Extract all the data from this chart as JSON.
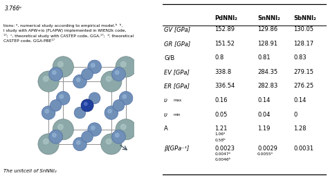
{
  "col_headers": [
    "",
    "PdNNI₂",
    "SnNNI₂",
    "SbNNI₂"
  ],
  "rows": [
    [
      "GV [GPa]",
      "152.89",
      "129.86",
      "130.05"
    ],
    [
      "GR [GPa]",
      "151.52",
      "128.91",
      "128.17"
    ],
    [
      "G/B",
      "0.8",
      "0.81",
      "0.83"
    ],
    [
      "EV [GPa]",
      "338.8",
      "284.35",
      "279.15"
    ],
    [
      "ER [GPa]",
      "336.54",
      "282.83",
      "276.25"
    ],
    [
      "v_max",
      "0.16",
      "0.14",
      "0.14"
    ],
    [
      "v_min",
      "0.05",
      "0.04",
      "0"
    ],
    [
      "A",
      "1.21\n1.06ᵃ\n0.58ᵇ",
      "1.19",
      "1.28"
    ],
    [
      "β[GPa⁻¹]",
      "0.0023\n0.0047ᵃ\n0.0046ᵇ",
      "0.0029\n0.0055ᵃ",
      "0.0031"
    ]
  ],
  "italic_col0": [
    0,
    1,
    3,
    4
  ],
  "background_color": "#ffffff",
  "font_size": 6.0,
  "left_text_top": "3.766ᵇ",
  "left_caption": "The unitcell of SnNNi₂",
  "left_notes": "tions: ᵃ, numerical study according to empirical model.ᵇ  ᵇ,\nl study with APW+lo (FLAPW) implemented in WIEN2k code,\n¹⁷;  ᶜ, theoretical study with CASTEP code, GGA,¹⁷;  ᵈ, theoretical\nCASTEP code, GGA-PBE¹⁷",
  "gray_color": "#8ca8a8",
  "blue_color": "#7090b8",
  "dark_blue": "#2040a0",
  "line_color": "#909090"
}
